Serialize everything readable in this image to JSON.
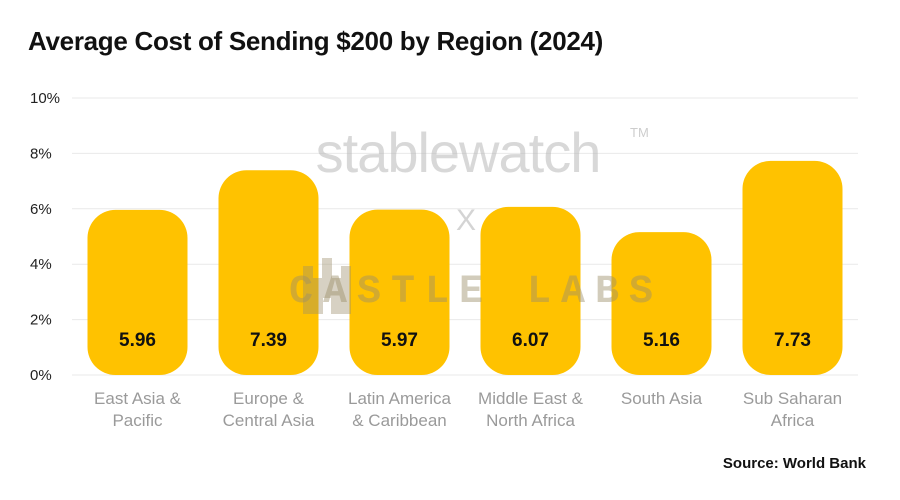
{
  "chart_data": {
    "type": "bar",
    "title": "Average Cost of Sending $200 by Region (2024)",
    "categories": [
      [
        "East Asia &",
        "Pacific"
      ],
      [
        "Europe &",
        "Central Asia"
      ],
      [
        "Latin America",
        "& Caribbean"
      ],
      [
        "Middle East &",
        "North Africa"
      ],
      [
        "South Asia"
      ],
      [
        "Sub Saharan",
        "Africa"
      ]
    ],
    "values": [
      5.96,
      7.39,
      5.97,
      6.07,
      5.16,
      7.73
    ],
    "value_labels": [
      "5.96",
      "7.39",
      "5.97",
      "6.07",
      "5.16",
      "7.73"
    ],
    "ylim": [
      0,
      10
    ],
    "y_ticks": [
      0,
      2,
      4,
      6,
      8,
      10
    ],
    "y_tick_labels": [
      "0%",
      "2%",
      "4%",
      "6%",
      "8%",
      "10%"
    ],
    "xlabel": "",
    "ylabel": "",
    "grid": true,
    "bar_color": "#ffc200",
    "source": "Source: World Bank"
  },
  "watermark": {
    "brand": "stablewatch",
    "trademark": "TM",
    "separator": "X",
    "partner": "CASTLE LABS",
    "partner_icon": "castle-icon"
  }
}
